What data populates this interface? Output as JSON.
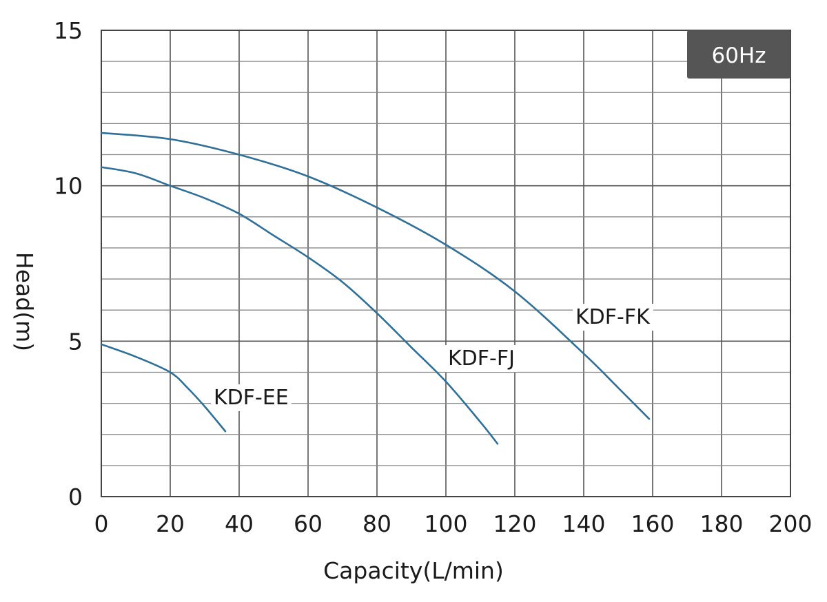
{
  "chart_data": {
    "type": "line",
    "xlabel": "Capacity(L/min)",
    "ylabel": "Head(m)",
    "xlim": [
      0,
      200
    ],
    "ylim": [
      0,
      15
    ],
    "x_ticks": [
      0,
      20,
      40,
      60,
      80,
      100,
      120,
      140,
      160,
      180,
      200
    ],
    "y_ticks": [
      0,
      5,
      10,
      15
    ],
    "y_minor_step": 1,
    "grid": true,
    "badge": "60Hz",
    "line_color": "#2f6f98",
    "series": [
      {
        "name": "KDF-EE",
        "x": [
          0,
          10,
          20,
          25,
          30,
          36
        ],
        "y": [
          4.9,
          4.5,
          4.0,
          3.5,
          2.9,
          2.1
        ]
      },
      {
        "name": "KDF-FJ",
        "x": [
          0,
          10,
          20,
          30,
          40,
          50,
          60,
          70,
          80,
          90,
          100,
          110,
          115
        ],
        "y": [
          10.6,
          10.4,
          10.0,
          9.6,
          9.1,
          8.4,
          7.7,
          6.9,
          5.9,
          4.8,
          3.7,
          2.4,
          1.7
        ]
      },
      {
        "name": "KDF-FK",
        "x": [
          0,
          20,
          40,
          60,
          80,
          100,
          120,
          140,
          150,
          159
        ],
        "y": [
          11.7,
          11.5,
          11.0,
          10.3,
          9.3,
          8.1,
          6.6,
          4.6,
          3.5,
          2.5
        ]
      }
    ]
  }
}
